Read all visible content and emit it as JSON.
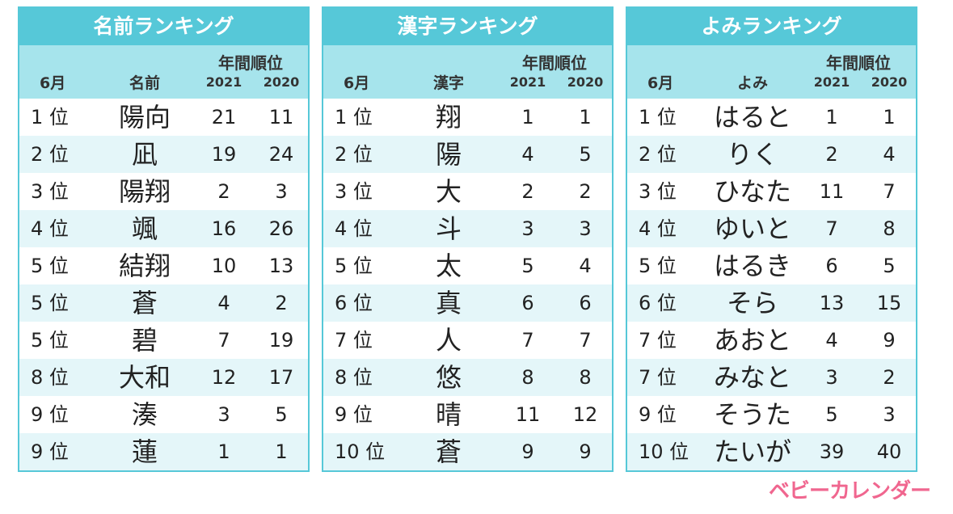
{
  "colors": {
    "accent": "#56c8d8",
    "header_bg": "#a6e4ec",
    "row_alt": "#e4f6f9",
    "logo": "#f0668f"
  },
  "tables": [
    {
      "title": "名前ランキング",
      "col_month": "6月",
      "col_item": "名前",
      "col_annual": "年間順位",
      "col_y1": "2021",
      "col_y2": "2020",
      "rows": [
        {
          "rank": "1 位",
          "item": "陽向",
          "v1": "21",
          "v2": "11"
        },
        {
          "rank": "2 位",
          "item": "凪",
          "v1": "19",
          "v2": "24"
        },
        {
          "rank": "3 位",
          "item": "陽翔",
          "v1": "2",
          "v2": "3"
        },
        {
          "rank": "4 位",
          "item": "颯",
          "v1": "16",
          "v2": "26"
        },
        {
          "rank": "5 位",
          "item": "結翔",
          "v1": "10",
          "v2": "13"
        },
        {
          "rank": "5 位",
          "item": "蒼",
          "v1": "4",
          "v2": "2"
        },
        {
          "rank": "5 位",
          "item": "碧",
          "v1": "7",
          "v2": "19"
        },
        {
          "rank": "8 位",
          "item": "大和",
          "v1": "12",
          "v2": "17"
        },
        {
          "rank": "9 位",
          "item": "湊",
          "v1": "3",
          "v2": "5"
        },
        {
          "rank": "9 位",
          "item": "蓮",
          "v1": "1",
          "v2": "1"
        }
      ]
    },
    {
      "title": "漢字ランキング",
      "col_month": "6月",
      "col_item": "漢字",
      "col_annual": "年間順位",
      "col_y1": "2021",
      "col_y2": "2020",
      "rows": [
        {
          "rank": "1 位",
          "item": "翔",
          "v1": "1",
          "v2": "1"
        },
        {
          "rank": "2 位",
          "item": "陽",
          "v1": "4",
          "v2": "5"
        },
        {
          "rank": "3 位",
          "item": "大",
          "v1": "2",
          "v2": "2"
        },
        {
          "rank": "4 位",
          "item": "斗",
          "v1": "3",
          "v2": "3"
        },
        {
          "rank": "5 位",
          "item": "太",
          "v1": "5",
          "v2": "4"
        },
        {
          "rank": "6 位",
          "item": "真",
          "v1": "6",
          "v2": "6"
        },
        {
          "rank": "7 位",
          "item": "人",
          "v1": "7",
          "v2": "7"
        },
        {
          "rank": "8 位",
          "item": "悠",
          "v1": "8",
          "v2": "8"
        },
        {
          "rank": "9 位",
          "item": "晴",
          "v1": "11",
          "v2": "12"
        },
        {
          "rank": "10 位",
          "item": "蒼",
          "v1": "9",
          "v2": "9"
        }
      ]
    },
    {
      "title": "よみランキング",
      "col_month": "6月",
      "col_item": "よみ",
      "col_annual": "年間順位",
      "col_y1": "2021",
      "col_y2": "2020",
      "rows": [
        {
          "rank": "1 位",
          "item": "はると",
          "v1": "1",
          "v2": "1"
        },
        {
          "rank": "2 位",
          "item": "りく",
          "v1": "2",
          "v2": "4"
        },
        {
          "rank": "3 位",
          "item": "ひなた",
          "v1": "11",
          "v2": "7"
        },
        {
          "rank": "4 位",
          "item": "ゆいと",
          "v1": "7",
          "v2": "8"
        },
        {
          "rank": "5 位",
          "item": "はるき",
          "v1": "6",
          "v2": "5"
        },
        {
          "rank": "6 位",
          "item": "そら",
          "v1": "13",
          "v2": "15"
        },
        {
          "rank": "7 位",
          "item": "あおと",
          "v1": "4",
          "v2": "9"
        },
        {
          "rank": "7 位",
          "item": "みなと",
          "v1": "3",
          "v2": "2"
        },
        {
          "rank": "9 位",
          "item": "そうた",
          "v1": "5",
          "v2": "3"
        },
        {
          "rank": "10 位",
          "item": "たいが",
          "v1": "39",
          "v2": "40"
        }
      ]
    }
  ],
  "logo_text": "ベビーカレンダー"
}
